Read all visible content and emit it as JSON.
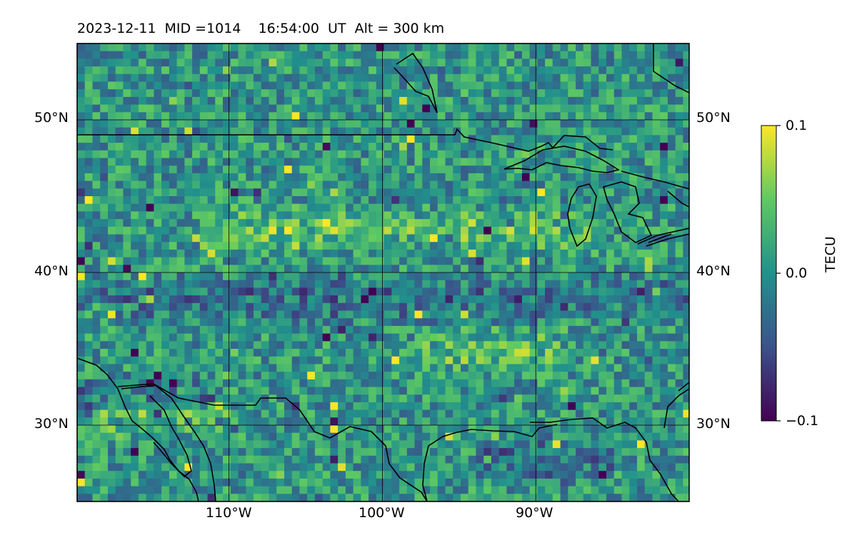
{
  "header": {
    "date": "2023-12-11",
    "mid": "MID =1014",
    "time": "16:54:00",
    "time_ref": "UT",
    "altitude": "Alt = 300 km",
    "full": "2023-12-11  MID =1014    16:54:00  UT  Alt = 300 km"
  },
  "map": {
    "lon_range": [
      -119.9,
      -80.0
    ],
    "lat_range": [
      25.0,
      55.0
    ],
    "lat_labels_left": [
      "50°N",
      "40°N",
      "30°N"
    ],
    "lat_labels_right": [
      "50°N",
      "40°N",
      "30°N"
    ],
    "lat_values": [
      50,
      40,
      30
    ],
    "lon_labels": [
      "110°W",
      "100°W",
      "90°W"
    ],
    "lon_values": [
      -110,
      -100,
      -90
    ],
    "gridlines": true,
    "features": [
      "coastlines",
      "US-Canada border",
      "Great Lakes",
      "Gulf of Mexico coast"
    ]
  },
  "colorbar": {
    "label": "TECU",
    "ticks": [
      "0.1",
      "0.0",
      "−0.1"
    ],
    "tick_values": [
      0.1,
      0.0,
      -0.1
    ],
    "range": [
      -0.1,
      0.1
    ],
    "colormap": "viridis",
    "colors": [
      "#440154",
      "#3b528b",
      "#21918c",
      "#5ec962",
      "#fde725"
    ]
  },
  "chart_data": {
    "type": "heatmap",
    "title": "2023-12-11  MID =1014    16:54:00  UT  Alt = 300 km",
    "variable": "TECU",
    "value_range": [
      -0.1,
      0.1
    ],
    "xlim": [
      -119.9,
      -80.0
    ],
    "ylim": [
      25.0,
      55.0
    ],
    "grid_resolution_deg": 0.5,
    "field": "noisy differential TEC perturbation, mostly near 0.0 with zonal bands of positive and negative anomalies",
    "anomaly_bands": [
      {
        "lat_center": 43.0,
        "sign": "positive",
        "lon_extent": [
          -112,
          -86
        ]
      },
      {
        "lat_center": 35.0,
        "sign": "positive",
        "lon_extent": [
          -98,
          -88
        ]
      },
      {
        "lat_center": 31.0,
        "sign": "positive",
        "lon_extent": [
          -119,
          -110
        ]
      },
      {
        "lat_center": 32.0,
        "sign": "negative",
        "lon_extent": [
          -120,
          -111
        ]
      },
      {
        "lat_center": 38.5,
        "sign": "negative",
        "lon_extent": [
          -120,
          -80
        ]
      },
      {
        "lat_center": 28.0,
        "sign": "negative",
        "lon_extent": [
          -94,
          -85
        ]
      }
    ]
  }
}
